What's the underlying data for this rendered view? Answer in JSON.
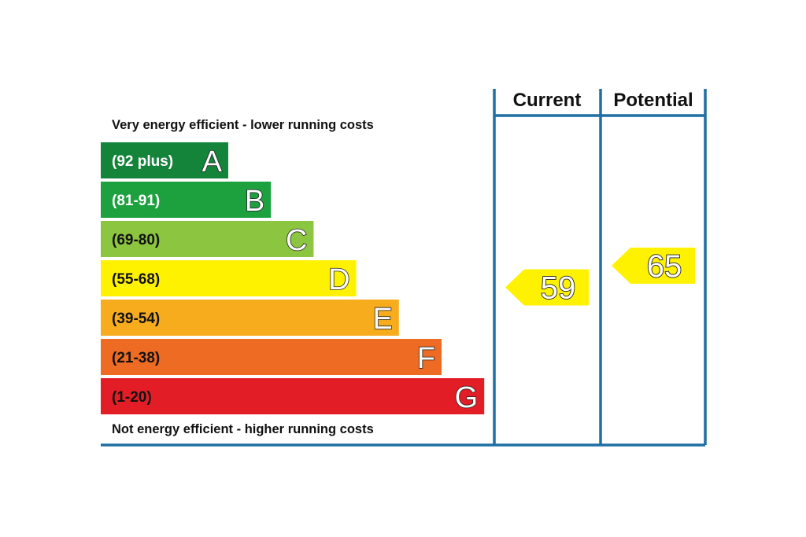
{
  "chart_data": {
    "type": "bar",
    "top_caption": "Very energy efficient - lower running costs",
    "bottom_caption": "Not energy efficient - higher running costs",
    "columns": [
      "Current",
      "Potential"
    ],
    "bands": [
      {
        "letter": "A",
        "range": "(92 plus)",
        "min": 92,
        "max": 100,
        "color": "#14843a",
        "label_color": "#ffffff"
      },
      {
        "letter": "B",
        "range": "(81-91)",
        "min": 81,
        "max": 91,
        "color": "#1da13f",
        "label_color": "#ffffff"
      },
      {
        "letter": "C",
        "range": "(69-80)",
        "min": 69,
        "max": 80,
        "color": "#8cc53f",
        "label_color": "#111111"
      },
      {
        "letter": "D",
        "range": "(55-68)",
        "min": 55,
        "max": 68,
        "color": "#fff200",
        "label_color": "#111111"
      },
      {
        "letter": "E",
        "range": "(39-54)",
        "min": 39,
        "max": 54,
        "color": "#f7ac1e",
        "label_color": "#111111"
      },
      {
        "letter": "F",
        "range": "(21-38)",
        "min": 21,
        "max": 38,
        "color": "#ee6b24",
        "label_color": "#111111"
      },
      {
        "letter": "G",
        "range": "(1-20)",
        "min": 1,
        "max": 20,
        "color": "#e31d25",
        "label_color": "#111111"
      }
    ],
    "ratings": {
      "current": {
        "value": 59,
        "band": "D",
        "color": "#fff200"
      },
      "potential": {
        "value": 65,
        "band": "D",
        "color": "#fff200"
      }
    },
    "frame_color": "#1f6fa3"
  }
}
